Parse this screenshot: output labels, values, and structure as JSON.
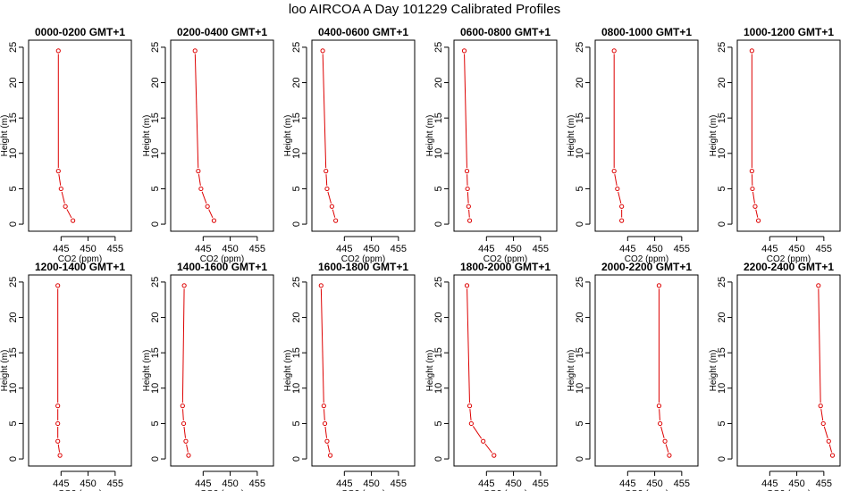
{
  "title": "loo AIRCOA A  Day 101229  Calibrated Profiles",
  "chart_data": {
    "type": "scatter",
    "title": "loo AIRCOA A  Day 101229  Calibrated Profiles",
    "xlabel": "CO2 (ppm)",
    "ylabel": "Height (m)",
    "xlim": [
      439,
      458
    ],
    "ylim": [
      -1,
      26
    ],
    "xticks": [
      445,
      450,
      455
    ],
    "yticks": [
      0,
      5,
      10,
      15,
      20,
      25
    ],
    "line_color": "#dd0000",
    "panels": [
      {
        "title": "0000-0200 GMT+1",
        "heights": [
          24.5,
          7.5,
          5,
          2.5,
          0.5
        ],
        "co2": [
          444.5,
          444.5,
          445.0,
          445.8,
          447.2
        ]
      },
      {
        "title": "0200-0400 GMT+1",
        "heights": [
          24.5,
          7.5,
          5,
          2.5,
          0.5
        ],
        "co2": [
          443.5,
          444.1,
          444.6,
          445.8,
          447.0
        ]
      },
      {
        "title": "0400-0600 GMT+1",
        "heights": [
          24.5,
          7.5,
          5,
          2.5,
          0.5
        ],
        "co2": [
          441.0,
          441.6,
          441.8,
          442.7,
          443.4
        ]
      },
      {
        "title": "0600-0800 GMT+1",
        "heights": [
          24.5,
          7.5,
          5,
          2.5,
          0.5
        ],
        "co2": [
          440.9,
          441.4,
          441.5,
          441.7,
          441.9
        ]
      },
      {
        "title": "0800-1000 GMT+1",
        "heights": [
          24.5,
          7.5,
          5,
          2.5,
          0.5
        ],
        "co2": [
          442.5,
          442.5,
          443.1,
          443.9,
          443.9
        ]
      },
      {
        "title": "1000-1200 GMT+1",
        "heights": [
          24.5,
          7.5,
          5,
          2.5,
          0.5
        ],
        "co2": [
          441.7,
          441.7,
          441.8,
          442.3,
          442.9
        ]
      },
      {
        "title": "1200-1400 GMT+1",
        "heights": [
          24.5,
          7.5,
          5,
          2.5,
          0.5
        ],
        "co2": [
          444.4,
          444.4,
          444.4,
          444.4,
          444.8
        ]
      },
      {
        "title": "1400-1600 GMT+1",
        "heights": [
          24.5,
          7.5,
          5,
          2.5,
          0.5
        ],
        "co2": [
          441.5,
          441.2,
          441.4,
          441.8,
          442.3
        ]
      },
      {
        "title": "1600-1800 GMT+1",
        "heights": [
          24.5,
          7.5,
          5,
          2.5,
          0.5
        ],
        "co2": [
          440.7,
          441.2,
          441.4,
          441.8,
          442.4
        ]
      },
      {
        "title": "1800-2000 GMT+1",
        "heights": [
          24.5,
          7.5,
          5,
          2.5,
          0.5
        ],
        "co2": [
          441.4,
          441.9,
          442.2,
          444.4,
          446.4
        ]
      },
      {
        "title": "2000-2200 GMT+1",
        "heights": [
          24.5,
          7.5,
          5,
          2.5,
          0.5
        ],
        "co2": [
          450.8,
          450.8,
          451.0,
          451.9,
          452.7
        ]
      },
      {
        "title": "2200-2400 GMT+1",
        "heights": [
          24.5,
          7.5,
          5,
          2.5,
          0.5
        ],
        "co2": [
          454.0,
          454.4,
          454.9,
          455.9,
          456.6
        ]
      }
    ]
  }
}
